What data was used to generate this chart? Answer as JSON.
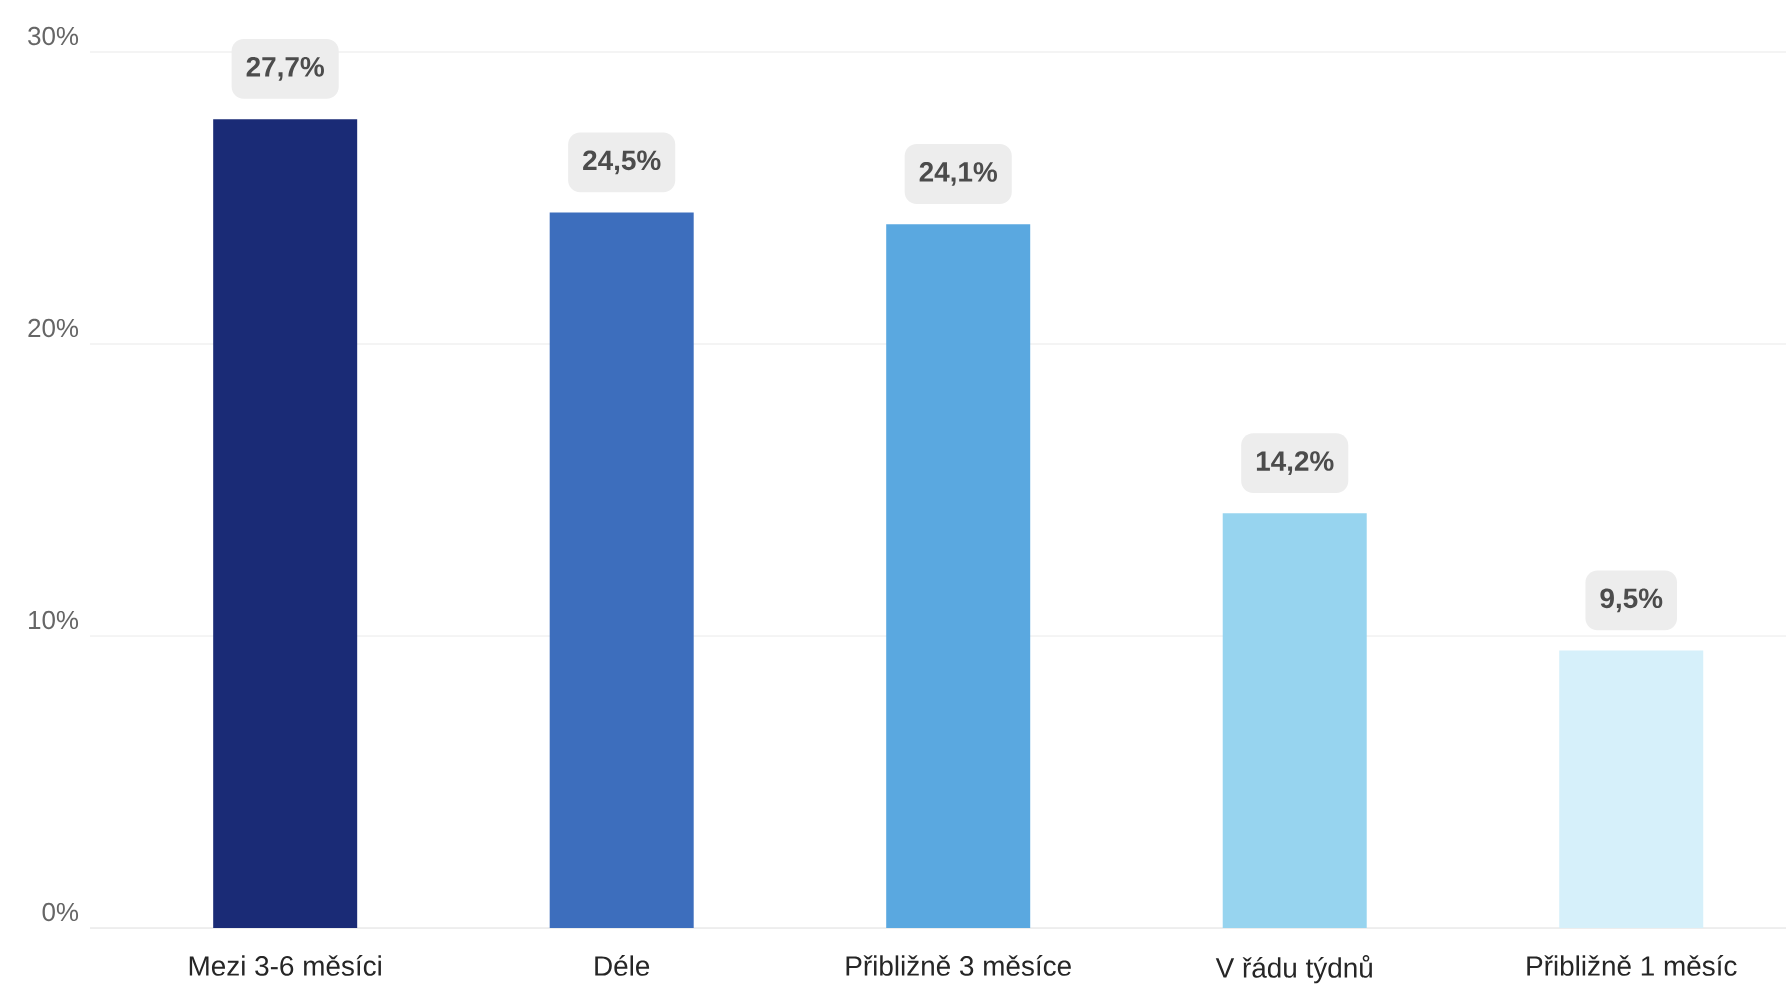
{
  "chart_data": {
    "type": "bar",
    "categories": [
      "Mezi 3-6 měsíci",
      "Déle",
      "Přibližně 3 měsíce",
      "V řádu týdnů",
      "Přibližně 1 měsíc"
    ],
    "values": [
      27.7,
      24.5,
      24.1,
      14.2,
      9.5
    ],
    "colors": [
      "#1a2b76",
      "#3d6ebd",
      "#5aa8e0",
      "#97d4ef",
      "#d6f0fa"
    ],
    "value_labels": [
      "27,7%",
      "24,5%",
      "24,1%",
      "14,2%",
      "9,5%"
    ],
    "ylim": [
      0,
      30
    ],
    "yticks": [
      {
        "value": 0,
        "label": "0%"
      },
      {
        "value": 10,
        "label": "10%"
      },
      {
        "value": 20,
        "label": "20%"
      },
      {
        "value": 30,
        "label": "30%"
      }
    ],
    "grid": "y"
  }
}
